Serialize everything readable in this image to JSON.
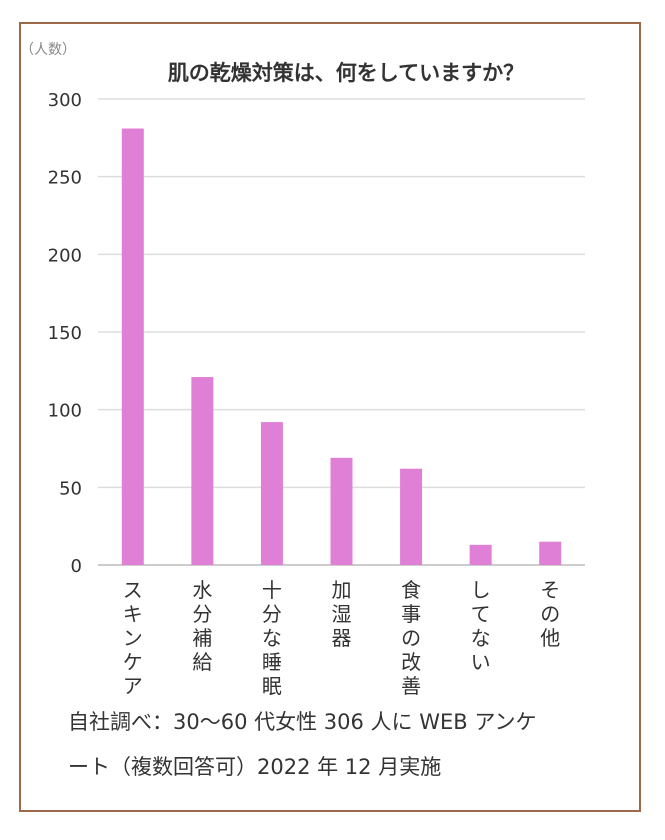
{
  "chart_data": {
    "type": "bar",
    "title": "肌の乾燥対策は、何をしていますか？",
    "ylabel": "（人数）",
    "xlabel": "",
    "categories": [
      "スキンケア",
      "水分補給",
      "十分な睡眠",
      "加湿器",
      "食事の改善",
      "してない",
      "その他"
    ],
    "values": [
      281,
      121,
      92,
      69,
      62,
      13,
      15
    ],
    "ylim": [
      0,
      300
    ],
    "yticks": [
      "0",
      "50",
      "100",
      "150",
      "200",
      "250",
      "300"
    ],
    "grid": true,
    "bar_color": "#e07fd6"
  },
  "footnote": {
    "line1": "自社調べ：30～60 代女性 306 人に WEB アンケ",
    "line2": "ート（複数回答可）2022 年 12 月実施"
  }
}
